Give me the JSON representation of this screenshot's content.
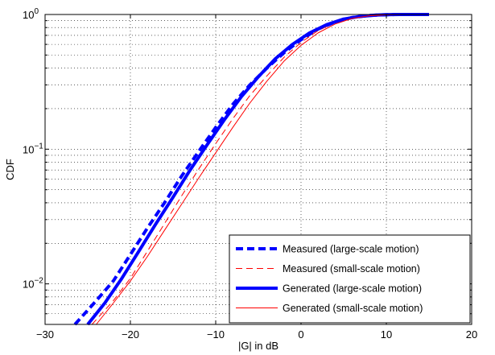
{
  "chart_data": {
    "type": "line",
    "title": "",
    "xlabel": "|G| in dB",
    "ylabel": "CDF",
    "xlim": [
      -30,
      20
    ],
    "ylim": [
      0.005,
      1.0
    ],
    "yscale": "log",
    "grid": true,
    "grid_style": "dotted",
    "x_ticks": [
      {
        "value": -30,
        "label": "−30"
      },
      {
        "value": -20,
        "label": "−20"
      },
      {
        "value": -10,
        "label": "−10"
      },
      {
        "value": 0,
        "label": "0"
      },
      {
        "value": 10,
        "label": "10"
      },
      {
        "value": 20,
        "label": "20"
      }
    ],
    "y_ticks": [
      {
        "value": 0.01,
        "base": "10",
        "exp": "−2"
      },
      {
        "value": 0.1,
        "base": "10",
        "exp": "−1"
      },
      {
        "value": 1,
        "base": "10",
        "exp": "0"
      }
    ],
    "legend_position": "bottom-right",
    "series": [
      {
        "name": "Measured (large-scale motion)",
        "color": "#0000ff",
        "line_style": "dashed",
        "line_weight": "thick",
        "points": [
          [
            -26.5,
            0.005
          ],
          [
            -24,
            0.0075
          ],
          [
            -22,
            0.0105
          ],
          [
            -20,
            0.0165
          ],
          [
            -18,
            0.026
          ],
          [
            -16,
            0.04
          ],
          [
            -14,
            0.063
          ],
          [
            -12,
            0.096
          ],
          [
            -10,
            0.145
          ],
          [
            -8,
            0.215
          ],
          [
            -6,
            0.3
          ],
          [
            -4,
            0.4
          ],
          [
            -2,
            0.52
          ],
          [
            0,
            0.65
          ],
          [
            2,
            0.78
          ],
          [
            4,
            0.88
          ],
          [
            6,
            0.95
          ],
          [
            8,
            0.985
          ],
          [
            10,
            0.997
          ],
          [
            12,
            1.0
          ],
          [
            15,
            1.0
          ]
        ]
      },
      {
        "name": "Measured (small-scale motion)",
        "color": "#ff0000",
        "line_style": "dashed",
        "line_weight": "thin",
        "points": [
          [
            -24.5,
            0.005
          ],
          [
            -22,
            0.0075
          ],
          [
            -20,
            0.011
          ],
          [
            -18,
            0.0175
          ],
          [
            -16,
            0.028
          ],
          [
            -14,
            0.045
          ],
          [
            -12,
            0.071
          ],
          [
            -10,
            0.11
          ],
          [
            -8,
            0.168
          ],
          [
            -6,
            0.25
          ],
          [
            -4,
            0.35
          ],
          [
            -2,
            0.48
          ],
          [
            0,
            0.62
          ],
          [
            2,
            0.76
          ],
          [
            4,
            0.87
          ],
          [
            6,
            0.945
          ],
          [
            8,
            0.982
          ],
          [
            10,
            0.996
          ],
          [
            12,
            1.0
          ],
          [
            15,
            1.0
          ]
        ]
      },
      {
        "name": "Generated (large-scale motion)",
        "color": "#0000ff",
        "line_style": "solid",
        "line_weight": "thick",
        "points": [
          [
            -25,
            0.005
          ],
          [
            -23,
            0.0072
          ],
          [
            -21,
            0.011
          ],
          [
            -19,
            0.0175
          ],
          [
            -17,
            0.028
          ],
          [
            -15,
            0.044
          ],
          [
            -13,
            0.07
          ],
          [
            -11,
            0.108
          ],
          [
            -9,
            0.165
          ],
          [
            -7,
            0.245
          ],
          [
            -5,
            0.345
          ],
          [
            -3,
            0.47
          ],
          [
            -1,
            0.6
          ],
          [
            1,
            0.73
          ],
          [
            3,
            0.84
          ],
          [
            5,
            0.925
          ],
          [
            7,
            0.97
          ],
          [
            9,
            0.992
          ],
          [
            11,
            1.0
          ],
          [
            15,
            1.0
          ]
        ]
      },
      {
        "name": "Generated (small-scale motion)",
        "color": "#ff0000",
        "line_style": "solid",
        "line_weight": "thin",
        "points": [
          [
            -24,
            0.005
          ],
          [
            -22,
            0.0072
          ],
          [
            -20,
            0.0105
          ],
          [
            -18,
            0.016
          ],
          [
            -16,
            0.025
          ],
          [
            -14,
            0.039
          ],
          [
            -12,
            0.061
          ],
          [
            -10,
            0.094
          ],
          [
            -8,
            0.145
          ],
          [
            -6,
            0.22
          ],
          [
            -4,
            0.32
          ],
          [
            -2,
            0.45
          ],
          [
            0,
            0.59
          ],
          [
            2,
            0.73
          ],
          [
            4,
            0.85
          ],
          [
            6,
            0.935
          ],
          [
            8,
            0.978
          ],
          [
            10,
            0.995
          ],
          [
            12,
            1.0
          ],
          [
            15,
            1.0
          ]
        ]
      }
    ]
  }
}
